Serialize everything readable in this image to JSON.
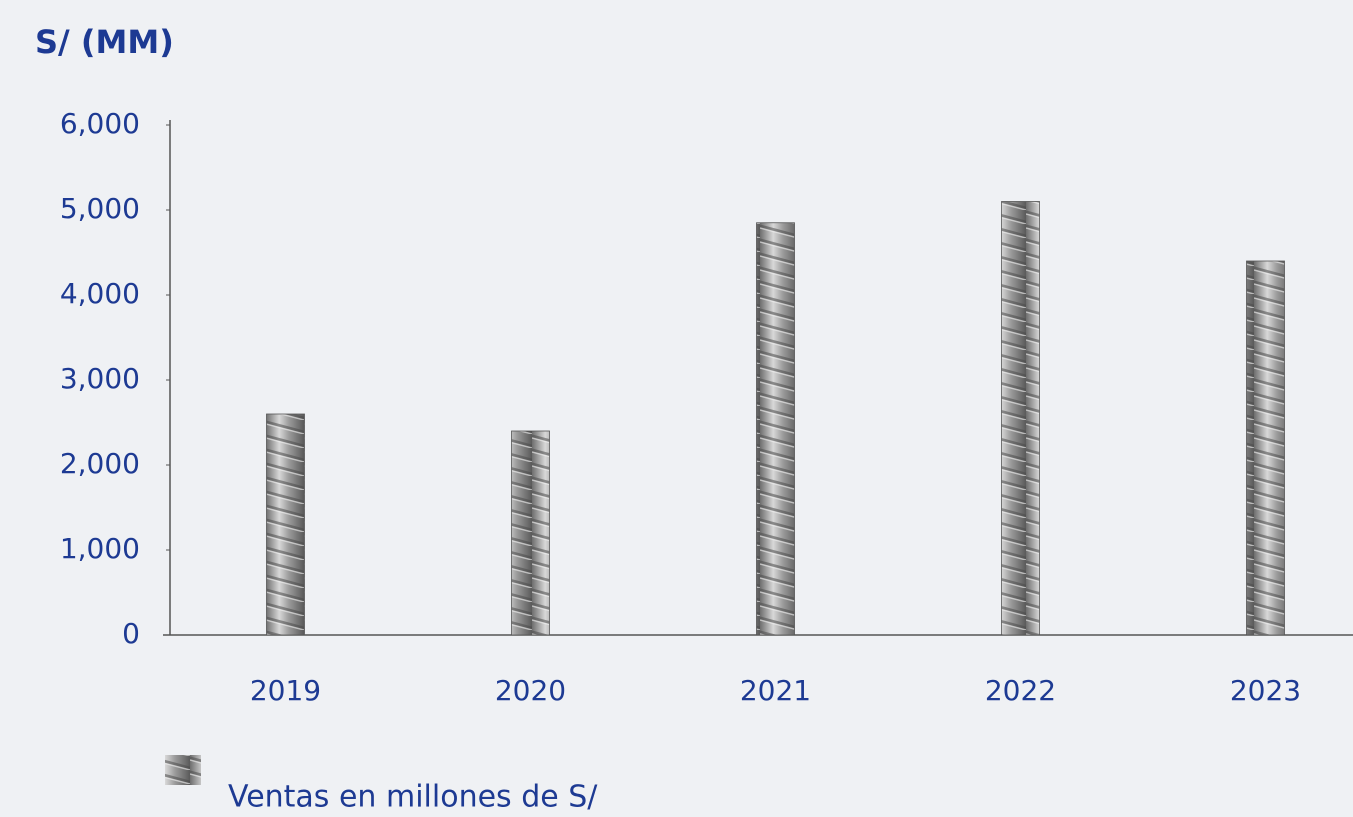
{
  "chart_data": {
    "type": "bar",
    "title": "S/ (MM)",
    "categories": [
      "2019",
      "2020",
      "2021",
      "2022",
      "2023"
    ],
    "series": [
      {
        "name": "Ventas en millones de S/",
        "color": "#9a9a9a",
        "values": [
          2600,
          2400,
          4850,
          5100,
          4400
        ]
      }
    ],
    "ylim": [
      0,
      6000
    ],
    "yticks": [
      0,
      {
        "value": 1000,
        "label": "1,000"
      },
      {
        "value": 2000,
        "label": "2,000"
      },
      {
        "value": 3000,
        "label": "3,000"
      },
      {
        "value": 4000,
        "label": "4,000"
      },
      {
        "value": 5000,
        "label": "5,000"
      },
      {
        "value": 6000,
        "label": "6,000"
      }
    ],
    "grid": false
  }
}
